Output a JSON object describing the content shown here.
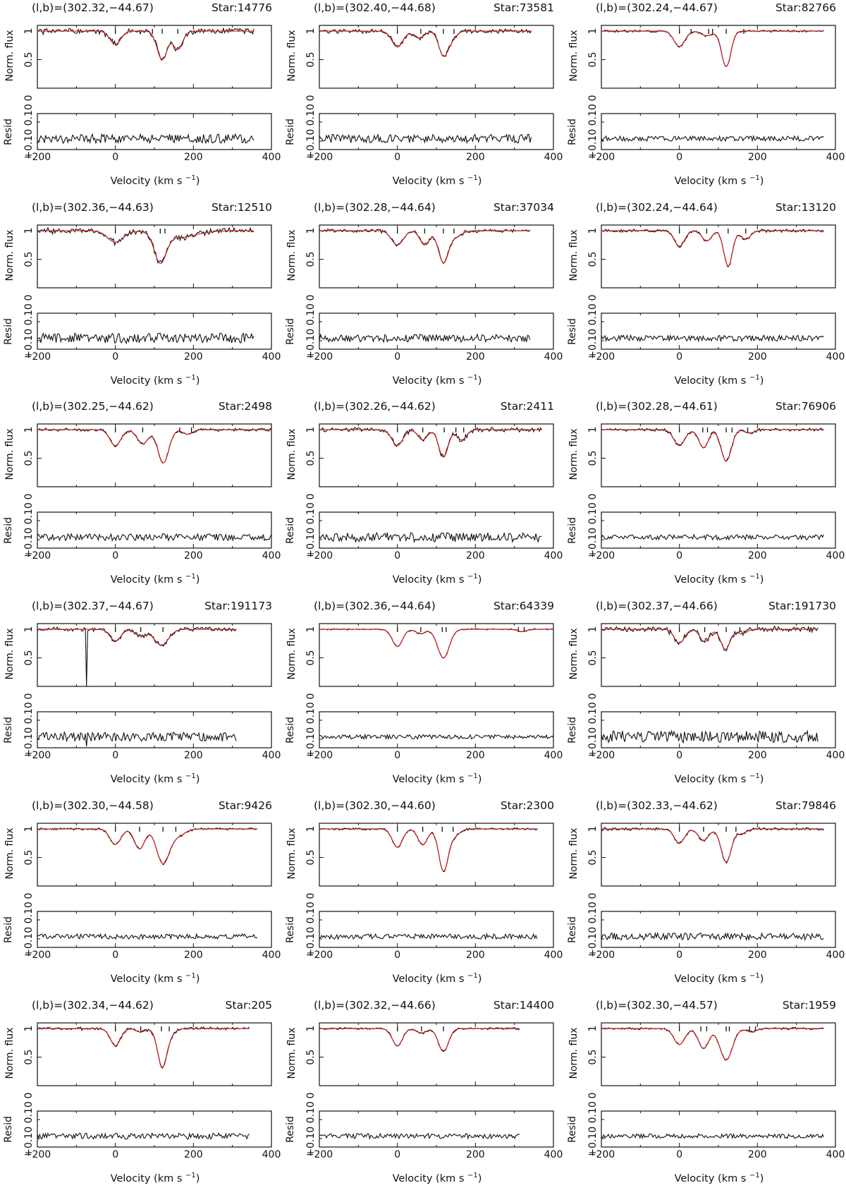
{
  "axis_labels": {
    "flux_ylabel": "Norm. flux",
    "resid_ylabel": "Resid",
    "xlabel_prefix": "Velocity (km s",
    "xlabel_exp": "−1",
    "xlabel_suffix": ")"
  },
  "chart_data": [
    {
      "type": "line",
      "title_left": "(l,b)=(302.32,−44.67)",
      "title_right": "Star:14776",
      "x_range": [
        -200,
        400
      ],
      "flux_ylim": [
        0,
        1.1
      ],
      "flux_yticks": [
        "0.5",
        "1"
      ],
      "resid_yticks": [
        "0.10",
        "0.10"
      ],
      "xticks": [
        "−200",
        "0",
        "200",
        "400"
      ],
      "data_x_range": [
        -200,
        355
      ],
      "components": [
        {
          "v": 0,
          "depth": 0.23,
          "width": 14
        },
        {
          "v": 120,
          "depth": 0.5,
          "width": 13
        },
        {
          "v": 160,
          "depth": 0.32,
          "width": 12
        }
      ],
      "tick_marks": [
        0,
        95,
        120,
        160
      ],
      "noise": 0.04,
      "resid_amp": 0.55,
      "seed": 1
    },
    {
      "type": "line",
      "title_left": "(l,b)=(302.40,−44.68)",
      "title_right": "Star:73581",
      "x_range": [
        -200,
        400
      ],
      "flux_ylim": [
        0,
        1.1
      ],
      "flux_yticks": [
        "0.5",
        "1"
      ],
      "resid_yticks": [
        "0.10",
        "0.10"
      ],
      "xticks": [
        "−200",
        "0",
        "200",
        "400"
      ],
      "data_x_range": [
        -200,
        345
      ],
      "components": [
        {
          "v": 0,
          "depth": 0.28,
          "width": 14
        },
        {
          "v": 55,
          "depth": 0.12,
          "width": 14
        },
        {
          "v": 118,
          "depth": 0.42,
          "width": 12
        },
        {
          "v": 140,
          "depth": 0.12,
          "width": 12
        }
      ],
      "tick_marks": [
        0,
        60,
        118,
        145
      ],
      "noise": 0.03,
      "resid_amp": 0.5,
      "seed": 2
    },
    {
      "type": "line",
      "title_left": "(l,b)=(302.24,−44.67)",
      "title_right": "Star:82766",
      "x_range": [
        -200,
        400
      ],
      "flux_ylim": [
        0,
        1.1
      ],
      "flux_yticks": [
        "0.5",
        "1"
      ],
      "resid_yticks": [
        "0.10",
        "0.10"
      ],
      "xticks": [
        "−200",
        "0",
        "200",
        "400"
      ],
      "data_x_range": [
        -200,
        370
      ],
      "components": [
        {
          "v": 0,
          "depth": 0.27,
          "width": 14
        },
        {
          "v": 70,
          "depth": 0.08,
          "width": 14
        },
        {
          "v": 120,
          "depth": 0.62,
          "width": 12
        }
      ],
      "tick_marks": [
        0,
        30,
        75,
        85,
        120,
        165
      ],
      "noise": 0.015,
      "resid_amp": 0.3,
      "seed": 3
    },
    {
      "type": "line",
      "title_left": "(l,b)=(302.36,−44.63)",
      "title_right": "Star:12510",
      "x_range": [
        -200,
        400
      ],
      "flux_ylim": [
        0,
        1.1
      ],
      "flux_yticks": [
        "0.5",
        "1"
      ],
      "resid_yticks": [
        "0.10",
        "0.10"
      ],
      "xticks": [
        "−200",
        "0",
        "200",
        "400"
      ],
      "data_x_range": [
        -200,
        355
      ],
      "components": [
        {
          "v": 0,
          "depth": 0.2,
          "width": 20
        },
        {
          "v": 115,
          "depth": 0.5,
          "width": 15
        },
        {
          "v": 160,
          "depth": 0.12,
          "width": 45
        }
      ],
      "tick_marks": [
        0,
        115,
        127
      ],
      "noise": 0.04,
      "resid_amp": 0.6,
      "seed": 4
    },
    {
      "type": "line",
      "title_left": "(l,b)=(302.28,−44.64)",
      "title_right": "Star:37034",
      "x_range": [
        -200,
        400
      ],
      "flux_ylim": [
        0,
        1.1
      ],
      "flux_yticks": [
        "0.5",
        "1"
      ],
      "resid_yticks": [
        "0.10",
        "0.10"
      ],
      "xticks": [
        "−200",
        "0",
        "200",
        "400"
      ],
      "data_x_range": [
        -200,
        340
      ],
      "components": [
        {
          "v": 0,
          "depth": 0.25,
          "width": 15
        },
        {
          "v": 70,
          "depth": 0.25,
          "width": 12
        },
        {
          "v": 118,
          "depth": 0.55,
          "width": 13
        },
        {
          "v": 150,
          "depth": 0.1,
          "width": 15
        }
      ],
      "tick_marks": [
        0,
        70,
        118,
        145
      ],
      "noise": 0.025,
      "resid_amp": 0.45,
      "seed": 5
    },
    {
      "type": "line",
      "title_left": "(l,b)=(302.24,−44.64)",
      "title_right": "Star:13120",
      "x_range": [
        -200,
        400
      ],
      "flux_ylim": [
        0,
        1.1
      ],
      "flux_yticks": [
        "0.5",
        "1"
      ],
      "resid_yticks": [
        "0.10",
        "0.10"
      ],
      "xticks": [
        "−200",
        "0",
        "200",
        "400"
      ],
      "data_x_range": [
        -200,
        370
      ],
      "components": [
        {
          "v": 0,
          "depth": 0.27,
          "width": 13
        },
        {
          "v": 70,
          "depth": 0.18,
          "width": 12
        },
        {
          "v": 125,
          "depth": 0.62,
          "width": 11
        },
        {
          "v": 170,
          "depth": 0.15,
          "width": 12
        }
      ],
      "tick_marks": [
        0,
        70,
        125,
        170
      ],
      "noise": 0.02,
      "resid_amp": 0.35,
      "seed": 6
    },
    {
      "type": "line",
      "title_left": "(l,b)=(302.25,−44.62)",
      "title_right": "Star:2498",
      "x_range": [
        -200,
        400
      ],
      "flux_ylim": [
        0,
        1.1
      ],
      "flux_yticks": [
        "0.5",
        "1"
      ],
      "resid_yticks": [
        "0.10",
        "0.10"
      ],
      "xticks": [
        "−200",
        "0",
        "200",
        "400"
      ],
      "data_x_range": [
        -200,
        400
      ],
      "components": [
        {
          "v": 0,
          "depth": 0.28,
          "width": 14
        },
        {
          "v": 70,
          "depth": 0.25,
          "width": 14
        },
        {
          "v": 123,
          "depth": 0.58,
          "width": 14
        },
        {
          "v": 185,
          "depth": 0.08,
          "width": 12
        }
      ],
      "tick_marks": [
        0,
        70,
        165,
        195
      ],
      "noise": 0.02,
      "resid_amp": 0.4,
      "seed": 7
    },
    {
      "type": "line",
      "title_left": "(l,b)=(302.26,−44.62)",
      "title_right": "Star:2411",
      "x_range": [
        -200,
        400
      ],
      "flux_ylim": [
        0,
        1.1
      ],
      "flux_yticks": [
        "0.5",
        "1"
      ],
      "resid_yticks": [
        "0.10",
        "0.10"
      ],
      "xticks": [
        "−200",
        "0",
        "200",
        "400"
      ],
      "data_x_range": [
        -200,
        370
      ],
      "components": [
        {
          "v": 0,
          "depth": 0.28,
          "width": 14
        },
        {
          "v": 65,
          "depth": 0.18,
          "width": 12
        },
        {
          "v": 118,
          "depth": 0.48,
          "width": 12
        },
        {
          "v": 165,
          "depth": 0.18,
          "width": 12
        }
      ],
      "tick_marks": [
        0,
        65,
        120,
        150,
        170
      ],
      "noise": 0.03,
      "resid_amp": 0.55,
      "seed": 8
    },
    {
      "type": "line",
      "title_left": "(l,b)=(302.28,−44.61)",
      "title_right": "Star:76906",
      "x_range": [
        -200,
        400
      ],
      "flux_ylim": [
        0,
        1.1
      ],
      "flux_yticks": [
        "0.5",
        "1"
      ],
      "resid_yticks": [
        "0.10",
        "0.10"
      ],
      "xticks": [
        "−200",
        "0",
        "200",
        "400"
      ],
      "data_x_range": [
        -200,
        370
      ],
      "components": [
        {
          "v": 0,
          "depth": 0.28,
          "width": 14
        },
        {
          "v": 62,
          "depth": 0.32,
          "width": 12
        },
        {
          "v": 120,
          "depth": 0.55,
          "width": 13
        },
        {
          "v": 180,
          "depth": 0.06,
          "width": 12
        }
      ],
      "tick_marks": [
        0,
        60,
        72,
        120,
        135,
        175
      ],
      "noise": 0.02,
      "resid_amp": 0.3,
      "seed": 9
    },
    {
      "type": "line",
      "title_left": "(l,b)=(302.37,−44.67)",
      "title_right": "Star:191173",
      "x_range": [
        -200,
        400
      ],
      "flux_ylim": [
        0,
        1.1
      ],
      "flux_yticks": [
        "0.5",
        "1"
      ],
      "resid_yticks": [
        "0.10",
        "0.10"
      ],
      "xticks": [
        "−200",
        "0",
        "200",
        "400"
      ],
      "data_x_range": [
        -200,
        310
      ],
      "components": [
        {
          "v": 0,
          "depth": 0.2,
          "width": 14
        },
        {
          "v": 65,
          "depth": 0.12,
          "width": 14
        },
        {
          "v": 118,
          "depth": 0.28,
          "width": 18
        }
      ],
      "tick_marks": [
        0,
        65,
        122
      ],
      "noise": 0.03,
      "resid_amp": 0.55,
      "spike_v": -75,
      "seed": 10
    },
    {
      "type": "line",
      "title_left": "(l,b)=(302.36,−44.64)",
      "title_right": "Star:64339",
      "x_range": [
        -200,
        400
      ],
      "flux_ylim": [
        0,
        1.1
      ],
      "flux_yticks": [
        "0.5",
        "1"
      ],
      "resid_yticks": [
        "0.10",
        "0.10"
      ],
      "xticks": [
        "−200",
        "0",
        "200",
        "400"
      ],
      "data_x_range": [
        -200,
        400
      ],
      "components": [
        {
          "v": 0,
          "depth": 0.3,
          "width": 13
        },
        {
          "v": 60,
          "depth": 0.08,
          "width": 12
        },
        {
          "v": 118,
          "depth": 0.5,
          "width": 15
        },
        {
          "v": 320,
          "depth": 0.04,
          "width": 12
        }
      ],
      "tick_marks": [
        0,
        60,
        115,
        125,
        310,
        325
      ],
      "noise": 0.01,
      "resid_amp": 0.25,
      "seed": 11
    },
    {
      "type": "line",
      "title_left": "(l,b)=(302.37,−44.66)",
      "title_right": "Star:191730",
      "x_range": [
        -200,
        400
      ],
      "flux_ylim": [
        0,
        1.1
      ],
      "flux_yticks": [
        "0.5",
        "1"
      ],
      "resid_yticks": [
        "0.10",
        "0.10"
      ],
      "xticks": [
        "−200",
        "0",
        "200",
        "400"
      ],
      "data_x_range": [
        -200,
        355
      ],
      "components": [
        {
          "v": 0,
          "depth": 0.24,
          "width": 13
        },
        {
          "v": 65,
          "depth": 0.22,
          "width": 12
        },
        {
          "v": 118,
          "depth": 0.35,
          "width": 12
        },
        {
          "v": 160,
          "depth": 0.08,
          "width": 12
        }
      ],
      "tick_marks": [
        0,
        65,
        120,
        155
      ],
      "noise": 0.04,
      "resid_amp": 0.7,
      "seed": 12
    },
    {
      "type": "line",
      "title_left": "(l,b)=(302.30,−44.58)",
      "title_right": "Star:9426",
      "x_range": [
        -200,
        400
      ],
      "flux_ylim": [
        0,
        1.1
      ],
      "flux_yticks": [
        "0.5",
        "1"
      ],
      "resid_yticks": [
        "0.10",
        "0.10"
      ],
      "xticks": [
        "−200",
        "0",
        "200",
        "400"
      ],
      "data_x_range": [
        -200,
        365
      ],
      "components": [
        {
          "v": 0,
          "depth": 0.27,
          "width": 14
        },
        {
          "v": 62,
          "depth": 0.35,
          "width": 13
        },
        {
          "v": 122,
          "depth": 0.6,
          "width": 16
        },
        {
          "v": 160,
          "depth": 0.12,
          "width": 18
        }
      ],
      "tick_marks": [
        0,
        62,
        122,
        155
      ],
      "noise": 0.015,
      "resid_amp": 0.3,
      "seed": 13
    },
    {
      "type": "line",
      "title_left": "(l,b)=(302.30,−44.60)",
      "title_right": "Star:2300",
      "x_range": [
        -200,
        400
      ],
      "flux_ylim": [
        0,
        1.1
      ],
      "flux_yticks": [
        "0.5",
        "1"
      ],
      "resid_yticks": [
        "0.10",
        "0.10"
      ],
      "xticks": [
        "−200",
        "0",
        "200",
        "400"
      ],
      "data_x_range": [
        -200,
        360
      ],
      "components": [
        {
          "v": 0,
          "depth": 0.32,
          "width": 13
        },
        {
          "v": 65,
          "depth": 0.28,
          "width": 12
        },
        {
          "v": 118,
          "depth": 0.72,
          "width": 12
        },
        {
          "v": 145,
          "depth": 0.12,
          "width": 14
        }
      ],
      "tick_marks": [
        0,
        65,
        115,
        143
      ],
      "noise": 0.015,
      "resid_amp": 0.3,
      "seed": 14
    },
    {
      "type": "line",
      "title_left": "(l,b)=(302.33,−44.62)",
      "title_right": "Star:79846",
      "x_range": [
        -200,
        400
      ],
      "flux_ylim": [
        0,
        1.1
      ],
      "flux_yticks": [
        "0.5",
        "1"
      ],
      "resid_yticks": [
        "0.10",
        "0.10"
      ],
      "xticks": [
        "−200",
        "0",
        "200",
        "400"
      ],
      "data_x_range": [
        -200,
        370
      ],
      "components": [
        {
          "v": 0,
          "depth": 0.25,
          "width": 13
        },
        {
          "v": 62,
          "depth": 0.2,
          "width": 13
        },
        {
          "v": 120,
          "depth": 0.58,
          "width": 13
        },
        {
          "v": 160,
          "depth": 0.08,
          "width": 12
        }
      ],
      "tick_marks": [
        0,
        62,
        120,
        145
      ],
      "noise": 0.02,
      "resid_amp": 0.4,
      "seed": 15
    },
    {
      "type": "line",
      "title_left": "(l,b)=(302.34,−44.62)",
      "title_right": "Star:205",
      "x_range": [
        -200,
        400
      ],
      "flux_ylim": [
        0,
        1.1
      ],
      "flux_yticks": [
        "0.5",
        "1"
      ],
      "resid_yticks": [
        "0.10",
        "0.10"
      ],
      "xticks": [
        "−200",
        "0",
        "200",
        "400"
      ],
      "data_x_range": [
        -200,
        345
      ],
      "components": [
        {
          "v": 0,
          "depth": 0.3,
          "width": 13
        },
        {
          "v": 65,
          "depth": 0.06,
          "width": 12
        },
        {
          "v": 120,
          "depth": 0.65,
          "width": 12
        },
        {
          "v": 140,
          "depth": 0.08,
          "width": 14
        }
      ],
      "tick_marks": [
        0,
        65,
        118,
        138
      ],
      "noise": 0.02,
      "resid_amp": 0.35,
      "seed": 16
    },
    {
      "type": "line",
      "title_left": "(l,b)=(302.32,−44.66)",
      "title_right": "Star:14400",
      "x_range": [
        -200,
        400
      ],
      "flux_ylim": [
        0,
        1.1
      ],
      "flux_yticks": [
        "0.5",
        "1"
      ],
      "resid_yticks": [
        "0.10",
        "0.10"
      ],
      "xticks": [
        "−200",
        "0",
        "200",
        "400"
      ],
      "data_x_range": [
        -200,
        315
      ],
      "components": [
        {
          "v": 0,
          "depth": 0.3,
          "width": 13
        },
        {
          "v": 62,
          "depth": 0.08,
          "width": 12
        },
        {
          "v": 118,
          "depth": 0.4,
          "width": 13
        }
      ],
      "tick_marks": [
        0,
        62,
        118
      ],
      "noise": 0.015,
      "resid_amp": 0.3,
      "seed": 17
    },
    {
      "type": "line",
      "title_left": "(l,b)=(302.30,−44.57)",
      "title_right": "Star:1959",
      "x_range": [
        -200,
        400
      ],
      "flux_ylim": [
        0,
        1.1
      ],
      "flux_yticks": [
        "0.5",
        "1"
      ],
      "resid_yticks": [
        "0.10",
        "0.10"
      ],
      "xticks": [
        "−200",
        "0",
        "200",
        "400"
      ],
      "data_x_range": [
        -200,
        370
      ],
      "components": [
        {
          "v": 0,
          "depth": 0.28,
          "width": 14
        },
        {
          "v": 62,
          "depth": 0.35,
          "width": 13
        },
        {
          "v": 120,
          "depth": 0.55,
          "width": 16
        },
        {
          "v": 185,
          "depth": 0.06,
          "width": 12
        }
      ],
      "tick_marks": [
        0,
        55,
        70,
        120,
        128,
        180,
        195
      ],
      "noise": 0.015,
      "resid_amp": 0.25,
      "seed": 18
    }
  ],
  "colors": {
    "data_line": "#111111",
    "fit_line": "#d11a1a",
    "axis": "#111111"
  }
}
